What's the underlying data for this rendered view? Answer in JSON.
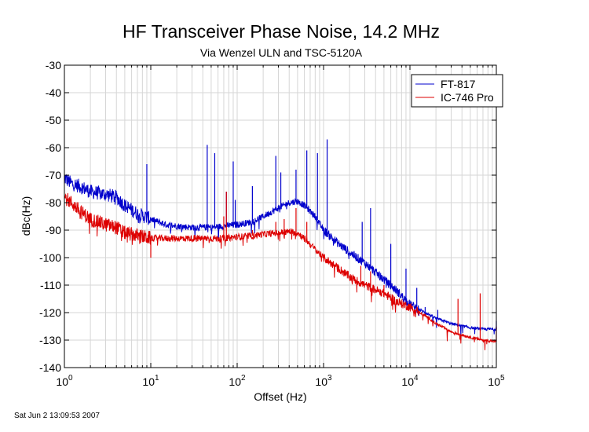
{
  "chart_data": {
    "type": "line",
    "title": "HF Transceiver Phase Noise, 14.2 MHz",
    "subtitle": "Via Wenzel ULN and TSC-5120A",
    "xlabel": "Offset (Hz)",
    "ylabel": "dBc(Hz)",
    "x_scale": "log",
    "xlim": [
      1,
      100000
    ],
    "ylim": [
      -140,
      -30
    ],
    "grid": true,
    "legend_position": "top-right",
    "x_ticks": [
      {
        "base": "10",
        "exp": "0",
        "value": 1
      },
      {
        "base": "10",
        "exp": "1",
        "value": 10
      },
      {
        "base": "10",
        "exp": "2",
        "value": 100
      },
      {
        "base": "10",
        "exp": "3",
        "value": 1000
      },
      {
        "base": "10",
        "exp": "4",
        "value": 10000
      },
      {
        "base": "10",
        "exp": "5",
        "value": 100000
      }
    ],
    "y_ticks": [
      "-30",
      "-40",
      "-50",
      "-60",
      "-70",
      "-80",
      "-90",
      "-100",
      "-110",
      "-120",
      "-130",
      "-140"
    ],
    "series": [
      {
        "name": "FT-817",
        "color": "#0000cc",
        "x": [
          1,
          1.2,
          1.5,
          2,
          3,
          4,
          5,
          7,
          10,
          15,
          20,
          30,
          50,
          70,
          100,
          150,
          200,
          300,
          400,
          500,
          600,
          800,
          1000,
          1500,
          2000,
          3000,
          5000,
          7000,
          10000,
          15000,
          20000,
          30000,
          50000,
          70000,
          100000
        ],
        "y": [
          -71,
          -73,
          -74,
          -76,
          -77,
          -78,
          -81,
          -84,
          -86,
          -88,
          -88.5,
          -89,
          -89,
          -88.5,
          -88,
          -87,
          -85,
          -82,
          -80,
          -79.5,
          -81,
          -85,
          -90,
          -95,
          -98,
          -102,
          -108,
          -112,
          -117,
          -120,
          -122,
          -124,
          -125.5,
          -126,
          -126
        ],
        "spurs": [
          [
            9,
            -66
          ],
          [
            45,
            -59
          ],
          [
            55,
            -62
          ],
          [
            75,
            -76
          ],
          [
            90,
            -65
          ],
          [
            95,
            -79
          ],
          [
            150,
            -74
          ],
          [
            280,
            -63
          ],
          [
            320,
            -69
          ],
          [
            480,
            -68
          ],
          [
            640,
            -61
          ],
          [
            850,
            -62
          ],
          [
            1100,
            -57
          ],
          [
            2800,
            -87
          ],
          [
            3500,
            -82
          ],
          [
            6000,
            -95
          ],
          [
            9000,
            -104
          ],
          [
            12000,
            -111
          ],
          [
            15000,
            -118
          ],
          [
            21000,
            -119
          ],
          [
            100000,
            -123
          ]
        ]
      },
      {
        "name": "IC-746 Pro",
        "color": "#dd0000",
        "x": [
          1,
          1.2,
          1.5,
          2,
          3,
          4,
          5,
          7,
          10,
          15,
          20,
          30,
          50,
          70,
          100,
          150,
          200,
          300,
          400,
          500,
          600,
          800,
          1000,
          1500,
          2000,
          3000,
          5000,
          7000,
          10000,
          15000,
          20000,
          30000,
          50000,
          70000,
          100000
        ],
        "y": [
          -78,
          -80,
          -83,
          -86,
          -88,
          -89,
          -91,
          -92,
          -93,
          -93,
          -93,
          -93,
          -93,
          -93,
          -92.5,
          -92,
          -91.5,
          -91,
          -90.5,
          -91,
          -93,
          -97,
          -100,
          -104,
          -107,
          -110,
          -113,
          -116,
          -118,
          -121,
          -124,
          -127,
          -129,
          -130,
          -130.5
        ],
        "spurs": [
          [
            7,
            -93
          ],
          [
            10,
            -100
          ],
          [
            70,
            -85
          ],
          [
            75,
            -76
          ],
          [
            150,
            -90
          ],
          [
            280,
            -87
          ],
          [
            350,
            -86
          ],
          [
            480,
            -82
          ],
          [
            640,
            -87
          ],
          [
            2700,
            -103
          ],
          [
            3500,
            -105
          ],
          [
            5000,
            -110
          ],
          [
            10000,
            -117
          ],
          [
            36000,
            -115
          ],
          [
            65000,
            -113
          ],
          [
            100000,
            -125
          ]
        ]
      }
    ]
  },
  "footer_timestamp": "Sat Jun  2 13:09:53 2007"
}
